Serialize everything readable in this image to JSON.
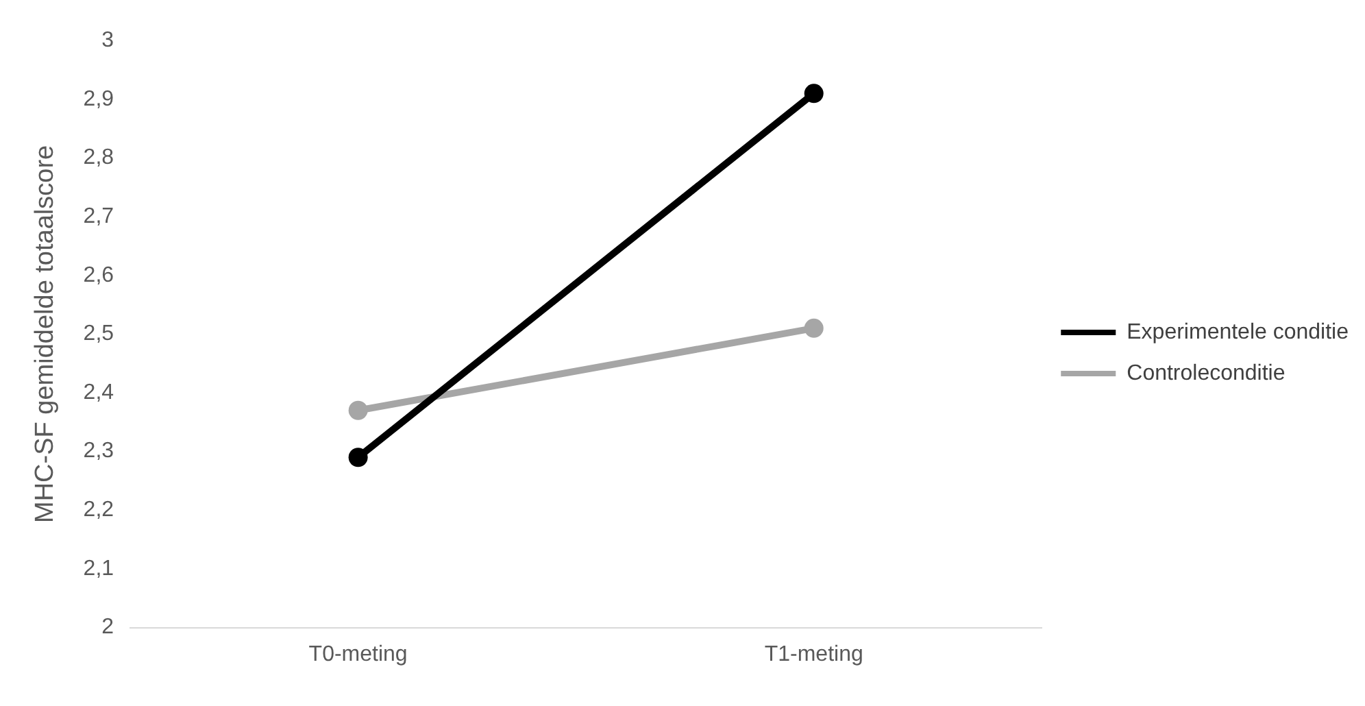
{
  "chart_data": {
    "type": "line",
    "ylabel": "MHC-SF gemiddelde totaalscore",
    "categories": [
      "T0-meting",
      "T1-meting"
    ],
    "series": [
      {
        "name": "Experimentele conditie",
        "color": "#000000",
        "values": [
          2.29,
          2.91
        ]
      },
      {
        "name": "Controleconditie",
        "color": "#a6a6a6",
        "values": [
          2.37,
          2.51
        ]
      }
    ],
    "ylim": [
      2,
      3
    ],
    "yticks": [
      {
        "value": 2,
        "label": "2"
      },
      {
        "value": 2.1,
        "label": "2,1"
      },
      {
        "value": 2.2,
        "label": "2,2"
      },
      {
        "value": 2.3,
        "label": "2,3"
      },
      {
        "value": 2.4,
        "label": "2,4"
      },
      {
        "value": 2.5,
        "label": "2,5"
      },
      {
        "value": 2.6,
        "label": "2,6"
      },
      {
        "value": 2.7,
        "label": "2,7"
      },
      {
        "value": 2.8,
        "label": "2,8"
      },
      {
        "value": 2.9,
        "label": "2,9"
      },
      {
        "value": 3,
        "label": "3"
      }
    ],
    "grid": false,
    "legend": "right",
    "marker": "circle",
    "line_style": "solid"
  }
}
